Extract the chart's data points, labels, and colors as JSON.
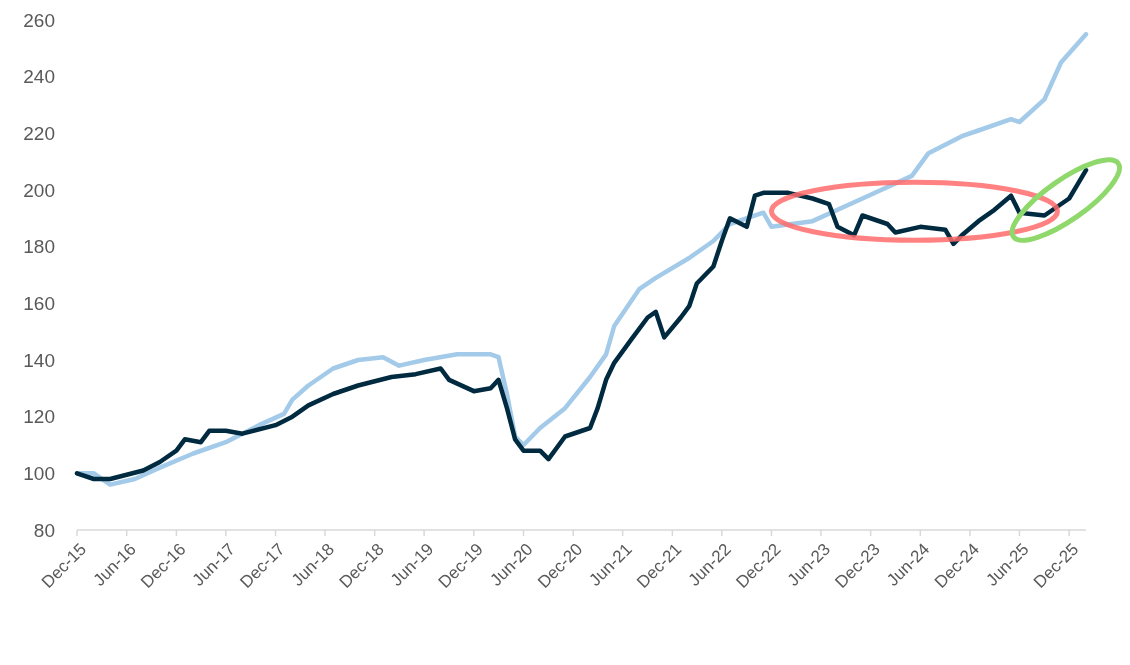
{
  "chart_data": {
    "type": "line",
    "ylim": [
      80,
      260
    ],
    "yticks": [
      80,
      100,
      120,
      140,
      160,
      180,
      200,
      220,
      240,
      260
    ],
    "xlim": [
      "2015-12",
      "2026-02"
    ],
    "xticks": [
      {
        "value": "2015-12",
        "label": "Dec-15"
      },
      {
        "value": "2016-06",
        "label": "Jun-16"
      },
      {
        "value": "2016-12",
        "label": "Dec-16"
      },
      {
        "value": "2017-06",
        "label": "Jun-17"
      },
      {
        "value": "2017-12",
        "label": "Dec-17"
      },
      {
        "value": "2018-06",
        "label": "Jun-18"
      },
      {
        "value": "2018-12",
        "label": "Dec-18"
      },
      {
        "value": "2019-06",
        "label": "Jun-19"
      },
      {
        "value": "2019-12",
        "label": "Dec-19"
      },
      {
        "value": "2020-06",
        "label": "Jun-20"
      },
      {
        "value": "2020-12",
        "label": "Dec-20"
      },
      {
        "value": "2021-06",
        "label": "Jun-21"
      },
      {
        "value": "2021-12",
        "label": "Dec-21"
      },
      {
        "value": "2022-06",
        "label": "Jun-22"
      },
      {
        "value": "2022-12",
        "label": "Dec-22"
      },
      {
        "value": "2023-06",
        "label": "Jun-23"
      },
      {
        "value": "2023-12",
        "label": "Dec-23"
      },
      {
        "value": "2024-06",
        "label": "Jun-24"
      },
      {
        "value": "2024-12",
        "label": "Dec-24"
      },
      {
        "value": "2025-06",
        "label": "Jun-25"
      },
      {
        "value": "2025-12",
        "label": "Dec-25"
      }
    ],
    "grid": false,
    "marker": "none",
    "line_style": "solid",
    "series": [
      {
        "color": "#a3cbe9",
        "x": [
          "2015-12",
          "2016-02",
          "2016-04",
          "2016-07",
          "2016-10",
          "2017-02",
          "2017-06",
          "2017-10",
          "2018-01",
          "2018-02",
          "2018-04",
          "2018-07",
          "2018-10",
          "2019-01",
          "2019-03",
          "2019-06",
          "2019-10",
          "2020-02",
          "2020-03",
          "2020-04",
          "2020-05",
          "2020-06",
          "2020-08",
          "2020-11",
          "2021-02",
          "2021-04",
          "2021-05",
          "2021-08",
          "2021-10",
          "2022-02",
          "2022-05",
          "2022-07",
          "2022-11",
          "2022-12",
          "2023-05",
          "2023-11",
          "2024-05",
          "2024-07",
          "2024-11",
          "2025-01",
          "2025-05",
          "2025-06",
          "2025-09",
          "2025-11",
          "2026-02"
        ],
        "values": [
          100,
          100,
          96,
          98,
          102,
          107,
          111,
          117,
          121,
          126,
          131,
          137,
          140,
          141,
          138,
          140,
          142,
          142,
          141,
          128,
          113,
          110,
          116,
          123,
          134,
          142,
          152,
          165,
          169,
          176,
          182,
          188,
          192,
          187,
          189,
          197,
          205,
          213,
          219,
          221,
          225,
          224,
          232,
          245,
          255
        ]
      },
      {
        "color": "#002a40",
        "x": [
          "2015-12",
          "2016-02",
          "2016-04",
          "2016-08",
          "2016-10",
          "2016-12",
          "2017-01",
          "2017-03",
          "2017-04",
          "2017-06",
          "2017-08",
          "2017-12",
          "2018-02",
          "2018-04",
          "2018-07",
          "2018-10",
          "2019-02",
          "2019-05",
          "2019-08",
          "2019-09",
          "2019-12",
          "2020-02",
          "2020-03",
          "2020-04",
          "2020-05",
          "2020-06",
          "2020-08",
          "2020-09",
          "2020-11",
          "2021-02",
          "2021-03",
          "2021-04",
          "2021-05",
          "2021-07",
          "2021-09",
          "2021-10",
          "2021-11",
          "2022-01",
          "2022-02",
          "2022-03",
          "2022-05",
          "2022-06",
          "2022-07",
          "2022-09",
          "2022-10",
          "2022-11",
          "2023-02",
          "2023-05",
          "2023-07",
          "2023-08",
          "2023-10",
          "2023-11",
          "2024-02",
          "2024-03",
          "2024-06",
          "2024-09",
          "2024-10",
          "2024-11",
          "2025-01",
          "2025-03",
          "2025-05",
          "2025-06",
          "2025-09",
          "2025-12",
          "2026-01",
          "2026-02"
        ],
        "values": [
          100,
          98,
          98,
          101,
          104,
          108,
          112,
          111,
          115,
          115,
          114,
          117,
          120,
          124,
          128,
          131,
          134,
          135,
          137,
          133,
          129,
          130,
          133,
          123,
          112,
          108,
          108,
          105,
          113,
          116,
          123,
          133,
          139,
          147,
          155,
          157,
          148,
          155,
          159,
          167,
          173,
          182,
          190,
          187,
          198,
          199,
          199,
          197,
          195,
          187,
          184,
          191,
          188,
          185,
          187,
          186,
          181,
          184,
          189,
          193,
          198,
          192,
          191,
          197,
          202,
          207
        ]
      }
    ]
  }
}
